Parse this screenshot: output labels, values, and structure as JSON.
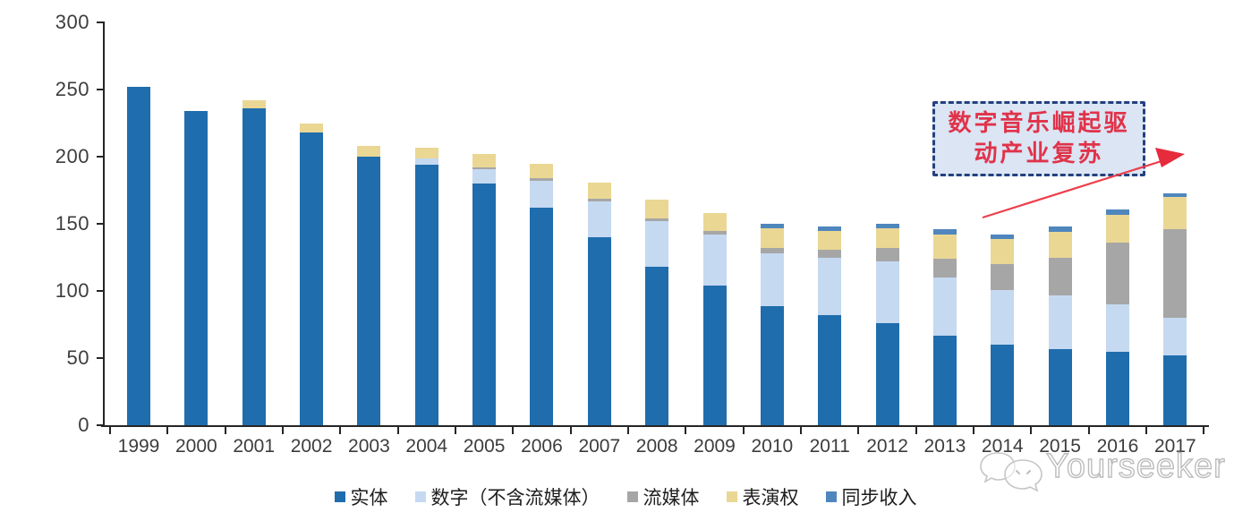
{
  "annotation": {
    "line1": "数字音乐崛起驱",
    "line2": "动产业复苏",
    "text_color": "#e0334a",
    "box_bg": "#dbe5f4",
    "box_border": "#24417e",
    "arrow_color": "#ed3e4b"
  },
  "watermark": {
    "brand": "Yourseeker",
    "logo": "wechat-icon",
    "color": "#bcbcbc"
  },
  "chart_data": {
    "type": "bar",
    "stacked": true,
    "grid": false,
    "legend_position": "bottom",
    "ylim": [
      0,
      300
    ],
    "yticks": [
      0,
      50,
      100,
      150,
      200,
      250,
      300
    ],
    "categories": [
      "1999",
      "2000",
      "2001",
      "2002",
      "2003",
      "2004",
      "2005",
      "2006",
      "2007",
      "2008",
      "2009",
      "2010",
      "2011",
      "2012",
      "2013",
      "2014",
      "2015",
      "2016",
      "2017"
    ],
    "series": [
      {
        "name": "实体",
        "color": "#1f6dad",
        "values": [
          252,
          234,
          236,
          218,
          200,
          194,
          180,
          162,
          140,
          118,
          104,
          89,
          82,
          76,
          67,
          60,
          57,
          55,
          52
        ]
      },
      {
        "name": "数字（不含流媒体）",
        "color": "#c5d9f1",
        "values": [
          0,
          0,
          0,
          0,
          0,
          5,
          11,
          20,
          27,
          34,
          38,
          39,
          43,
          46,
          43,
          41,
          40,
          35,
          28
        ]
      },
      {
        "name": "流媒体",
        "color": "#a6a6a6",
        "values": [
          0,
          0,
          0,
          0,
          0,
          0,
          1,
          2,
          2,
          2,
          3,
          4,
          6,
          10,
          14,
          19,
          28,
          46,
          66
        ]
      },
      {
        "name": "表演权",
        "color": "#ead794",
        "values": [
          0,
          0,
          6,
          7,
          8,
          8,
          10,
          11,
          12,
          14,
          13,
          15,
          14,
          15,
          18,
          19,
          19,
          21,
          24
        ]
      },
      {
        "name": "同步收入",
        "color": "#4f86be",
        "values": [
          0,
          0,
          0,
          0,
          0,
          0,
          0,
          0,
          0,
          0,
          0,
          3,
          3,
          3,
          4,
          3,
          4,
          4,
          3
        ]
      }
    ]
  }
}
